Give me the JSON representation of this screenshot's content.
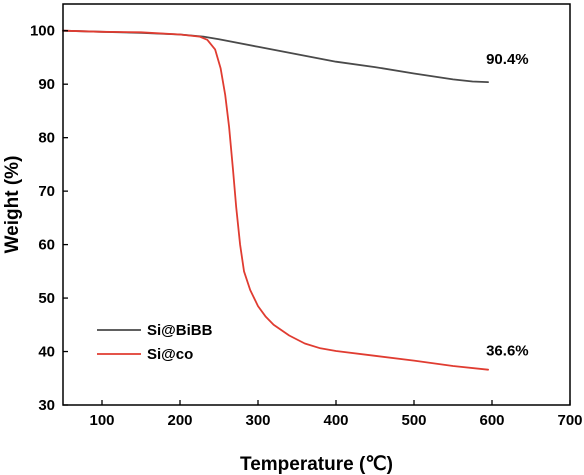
{
  "chart_data": {
    "type": "line",
    "xlabel": "Temperature (℃)",
    "ylabel": "Weight (%)",
    "xlim": [
      50,
      700
    ],
    "ylim": [
      30,
      105
    ],
    "xticks": [
      100,
      200,
      300,
      400,
      500,
      600,
      700
    ],
    "yticks": [
      30,
      40,
      50,
      60,
      70,
      80,
      90,
      100
    ],
    "grid": false,
    "legend_position": "bottom-left",
    "series": [
      {
        "name": "Si@BiBB",
        "color": "#4a4a4a",
        "x": [
          50,
          100,
          150,
          200,
          230,
          250,
          300,
          350,
          400,
          450,
          500,
          550,
          575,
          595
        ],
        "y": [
          100,
          99.8,
          99.6,
          99.3,
          98.9,
          98.4,
          97.0,
          95.6,
          94.2,
          93.2,
          92.0,
          90.9,
          90.5,
          90.4
        ]
      },
      {
        "name": "Si@co",
        "color": "#e03c31",
        "x": [
          50,
          100,
          150,
          200,
          225,
          235,
          245,
          252,
          258,
          263,
          268,
          272,
          277,
          282,
          290,
          300,
          310,
          320,
          340,
          360,
          380,
          400,
          450,
          500,
          550,
          595
        ],
        "y": [
          100,
          99.8,
          99.7,
          99.3,
          98.9,
          98.3,
          96.5,
          93.0,
          88.0,
          82.0,
          74.0,
          67.0,
          60.0,
          55.0,
          51.5,
          48.5,
          46.5,
          45.0,
          43.0,
          41.5,
          40.6,
          40.1,
          39.2,
          38.3,
          37.3,
          36.6
        ]
      }
    ],
    "annotations": [
      {
        "text": "90.4%",
        "x": 595,
        "y": 90.4,
        "series": "Si@BiBB"
      },
      {
        "text": "36.6%",
        "x": 595,
        "y": 36.6,
        "series": "Si@co"
      }
    ]
  }
}
